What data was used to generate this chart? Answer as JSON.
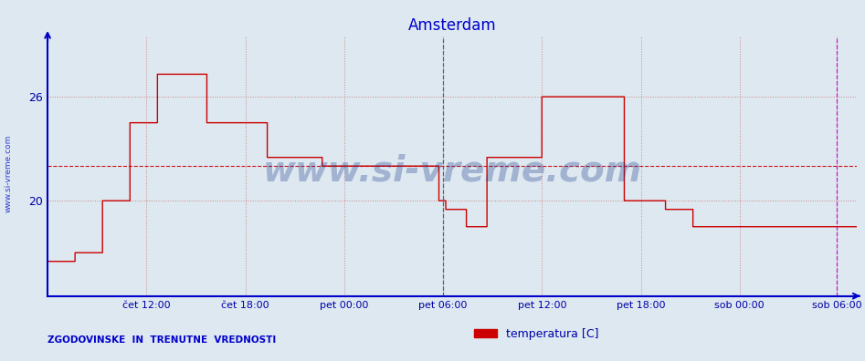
{
  "title": "Amsterdam",
  "title_color": "#0000cc",
  "title_fontsize": 12,
  "bg_color": "#dde8f0",
  "plot_bg_color": "#dde8f0",
  "line_color": "#cc0000",
  "axis_color": "#0000cc",
  "grid_color": "#cc8888",
  "grid_style": ":",
  "avg_line_color": "#cc0000",
  "avg_line_style": "--",
  "vline_pet06_color": "#555555",
  "vline_pet06_style": "--",
  "vline_sob06_color": "#cc00cc",
  "vline_sob06_style": "--",
  "ylabel_color": "#0000aa",
  "xlabel_color": "#0000aa",
  "watermark_text": "www.si-vreme.com",
  "watermark_color": "#1a3a8a",
  "watermark_alpha": 0.3,
  "bottom_left_text": "ZGODOVINSKE  IN  TRENUTNE  VREDNOSTI",
  "bottom_left_color": "#0000cc",
  "legend_label": "temperatura [C]",
  "legend_color": "#cc0000",
  "sidebar_text": "www.si-vreme.com",
  "sidebar_color": "#0000cc",
  "ylim": [
    14.5,
    29.5
  ],
  "yticks": [
    20,
    26
  ],
  "avg_value": 22.0,
  "num_points": 576,
  "vline_pet06_x": 288,
  "vline_sob06_x": 575,
  "x_tick_positions": [
    72,
    144,
    216,
    288,
    360,
    432,
    504,
    575
  ],
  "x_tick_labels": [
    "čet 12:00",
    "čet 18:00",
    "pet 00:00",
    "pet 06:00",
    "pet 12:00",
    "pet 18:00",
    "sob 00:00",
    "sob 06:00"
  ],
  "temperature_data": [
    16.5,
    16.5,
    16.5,
    16.5,
    16.5,
    16.5,
    16.5,
    16.5,
    16.5,
    16.5,
    16.5,
    16.5,
    16.5,
    16.5,
    16.5,
    16.5,
    16.5,
    16.5,
    16.5,
    16.5,
    17.0,
    17.0,
    17.0,
    17.0,
    17.0,
    17.0,
    17.0,
    17.0,
    17.0,
    17.0,
    17.0,
    17.0,
    17.0,
    17.0,
    17.0,
    17.0,
    17.0,
    17.0,
    17.0,
    17.0,
    20.0,
    20.0,
    20.0,
    20.0,
    20.0,
    20.0,
    20.0,
    20.0,
    20.0,
    20.0,
    20.0,
    20.0,
    20.0,
    20.0,
    20.0,
    20.0,
    20.0,
    20.0,
    20.0,
    20.0,
    24.5,
    24.5,
    24.5,
    24.5,
    24.5,
    24.5,
    24.5,
    24.5,
    24.5,
    24.5,
    24.5,
    24.5,
    24.5,
    24.5,
    24.5,
    24.5,
    24.5,
    24.5,
    24.5,
    24.5,
    27.3,
    27.3,
    27.3,
    27.3,
    27.3,
    27.3,
    27.3,
    27.3,
    27.3,
    27.3,
    27.3,
    27.3,
    27.3,
    27.3,
    27.3,
    27.3,
    27.3,
    27.3,
    27.3,
    27.3,
    27.3,
    27.3,
    27.3,
    27.3,
    27.3,
    27.3,
    27.3,
    27.3,
    27.3,
    27.3,
    27.3,
    27.3,
    27.3,
    27.3,
    27.3,
    27.3,
    24.5,
    24.5,
    24.5,
    24.5,
    24.5,
    24.5,
    24.5,
    24.5,
    24.5,
    24.5,
    24.5,
    24.5,
    24.5,
    24.5,
    24.5,
    24.5,
    24.5,
    24.5,
    24.5,
    24.5,
    24.5,
    24.5,
    24.5,
    24.5,
    24.5,
    24.5,
    24.5,
    24.5,
    24.5,
    24.5,
    24.5,
    24.5,
    24.5,
    24.5,
    24.5,
    24.5,
    24.5,
    24.5,
    24.5,
    24.5,
    24.5,
    24.5,
    24.5,
    24.5,
    22.5,
    22.5,
    22.5,
    22.5,
    22.5,
    22.5,
    22.5,
    22.5,
    22.5,
    22.5,
    22.5,
    22.5,
    22.5,
    22.5,
    22.5,
    22.5,
    22.5,
    22.5,
    22.5,
    22.5,
    22.5,
    22.5,
    22.5,
    22.5,
    22.5,
    22.5,
    22.5,
    22.5,
    22.5,
    22.5,
    22.5,
    22.5,
    22.5,
    22.5,
    22.5,
    22.5,
    22.5,
    22.5,
    22.5,
    22.5,
    22.0,
    22.0,
    22.0,
    22.0,
    22.0,
    22.0,
    22.0,
    22.0,
    22.0,
    22.0,
    22.0,
    22.0,
    22.0,
    22.0,
    22.0,
    22.0,
    22.0,
    22.0,
    22.0,
    22.0,
    22.0,
    22.0,
    22.0,
    22.0,
    22.0,
    22.0,
    22.0,
    22.0,
    22.0,
    22.0,
    22.0,
    22.0,
    22.0,
    22.0,
    22.0,
    22.0,
    22.0,
    22.0,
    22.0,
    22.0,
    22.0,
    22.0,
    22.0,
    22.0,
    22.0,
    22.0,
    22.0,
    22.0,
    22.0,
    22.0,
    22.0,
    22.0,
    22.0,
    22.0,
    22.0,
    22.0,
    22.0,
    22.0,
    22.0,
    22.0,
    22.0,
    22.0,
    22.0,
    22.0,
    22.0,
    22.0,
    22.0,
    22.0,
    22.0,
    22.0,
    22.0,
    22.0,
    22.0,
    22.0,
    22.0,
    22.0,
    22.0,
    22.0,
    22.0,
    22.0,
    22.0,
    22.0,
    22.0,
    22.0,
    22.0,
    20.0,
    20.0,
    20.0,
    20.0,
    20.0,
    19.5,
    19.5,
    19.5,
    19.5,
    19.5,
    19.5,
    19.5,
    19.5,
    19.5,
    19.5,
    19.5,
    19.5,
    19.5,
    19.5,
    19.5,
    18.5,
    18.5,
    18.5,
    18.5,
    18.5,
    18.5,
    18.5,
    18.5,
    18.5,
    18.5,
    18.5,
    18.5,
    18.5,
    18.5,
    18.5,
    22.5,
    22.5,
    22.5,
    22.5,
    22.5,
    22.5,
    22.5,
    22.5,
    22.5,
    22.5,
    22.5,
    22.5,
    22.5,
    22.5,
    22.5,
    22.5,
    22.5,
    22.5,
    22.5,
    22.5,
    22.5,
    22.5,
    22.5,
    22.5,
    22.5,
    22.5,
    22.5,
    22.5,
    22.5,
    22.5,
    22.5,
    22.5,
    22.5,
    22.5,
    22.5,
    22.5,
    22.5,
    22.5,
    22.5,
    22.5,
    26.0,
    26.0,
    26.0,
    26.0,
    26.0,
    26.0,
    26.0,
    26.0,
    26.0,
    26.0,
    26.0,
    26.0,
    26.0,
    26.0,
    26.0,
    26.0,
    26.0,
    26.0,
    26.0,
    26.0,
    26.0,
    26.0,
    26.0,
    26.0,
    26.0,
    26.0,
    26.0,
    26.0,
    26.0,
    26.0,
    26.0,
    26.0,
    26.0,
    26.0,
    26.0,
    26.0,
    26.0,
    26.0,
    26.0,
    26.0,
    26.0,
    26.0,
    26.0,
    26.0,
    26.0,
    26.0,
    26.0,
    26.0,
    26.0,
    26.0,
    26.0,
    26.0,
    26.0,
    26.0,
    26.0,
    26.0,
    26.0,
    26.0,
    26.0,
    26.0,
    20.0,
    20.0,
    20.0,
    20.0,
    20.0,
    20.0,
    20.0,
    20.0,
    20.0,
    20.0,
    20.0,
    20.0,
    20.0,
    20.0,
    20.0,
    20.0,
    20.0,
    20.0,
    20.0,
    20.0,
    20.0,
    20.0,
    20.0,
    20.0,
    20.0,
    20.0,
    20.0,
    20.0,
    20.0,
    20.0,
    19.5,
    19.5,
    19.5,
    19.5,
    19.5,
    19.5,
    19.5,
    19.5,
    19.5,
    19.5,
    19.5,
    19.5,
    19.5,
    19.5,
    19.5,
    19.5,
    19.5,
    19.5,
    19.5,
    19.5,
    18.5,
    18.5,
    18.5,
    18.5,
    18.5,
    18.5,
    18.5,
    18.5,
    18.5,
    18.5,
    18.5,
    18.5,
    18.5,
    18.5,
    18.5,
    18.5,
    18.5,
    18.5,
    18.5,
    18.5,
    18.5,
    18.5,
    18.5,
    18.5,
    18.5,
    18.5,
    18.5,
    18.5,
    18.5,
    18.5,
    18.5,
    18.5,
    18.5,
    18.5,
    18.5,
    18.5,
    18.5,
    18.5,
    18.5,
    18.5,
    18.5,
    18.5,
    18.5,
    18.5,
    18.5,
    18.5,
    18.5,
    18.5,
    18.5,
    18.5,
    18.5,
    18.5,
    18.5,
    18.5,
    18.5,
    18.5,
    18.5,
    18.5,
    18.5,
    18.5,
    18.5,
    18.5,
    18.5,
    18.5,
    18.5,
    18.5,
    18.5,
    18.5,
    18.5,
    18.5,
    18.5,
    18.5,
    18.5,
    18.5,
    18.5,
    18.5,
    18.5,
    18.5,
    18.5,
    18.5,
    18.5,
    18.5,
    18.5,
    18.5,
    18.5,
    18.5,
    18.5,
    18.5,
    18.5,
    18.5,
    18.5,
    18.5,
    18.5,
    18.5,
    18.5,
    18.5,
    18.5,
    18.5,
    18.5,
    18.5,
    18.5,
    18.5,
    18.5,
    18.5,
    18.5,
    18.5,
    18.5,
    18.5,
    18.5,
    18.5,
    18.5,
    18.5,
    18.5,
    18.5,
    18.5,
    18.5,
    18.5,
    18.5,
    18.5,
    18.5
  ]
}
